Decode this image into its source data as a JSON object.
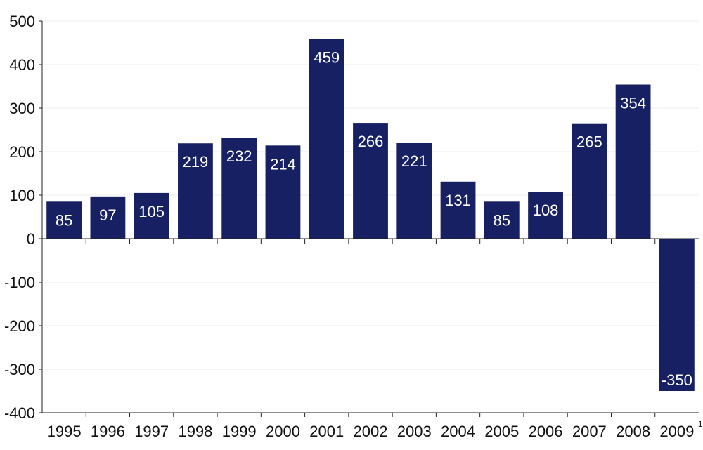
{
  "colors": {
    "bar": "#162063",
    "axis": "#222222",
    "grid": "#eeeeee",
    "label_text": "#ffffff"
  },
  "chart_data": {
    "type": "bar",
    "title": "",
    "xlabel": "",
    "ylabel": "",
    "categories": [
      "1995",
      "1996",
      "1997",
      "1998",
      "1999",
      "2000",
      "2001",
      "2002",
      "2003",
      "2004",
      "2005",
      "2006",
      "2007",
      "2008",
      "2009"
    ],
    "category_footnotes": [
      "",
      "",
      "",
      "",
      "",
      "",
      "",
      "",
      "",
      "",
      "",
      "",
      "",
      "",
      "1"
    ],
    "values": [
      85,
      97,
      105,
      219,
      232,
      214,
      459,
      266,
      221,
      131,
      85,
      108,
      265,
      354,
      -350
    ],
    "data_labels": [
      "85",
      "97",
      "105",
      "219",
      "232",
      "214",
      "459",
      "266",
      "221",
      "131",
      "85",
      "108",
      "265",
      "354",
      "-350"
    ],
    "ylim": [
      -400,
      500
    ],
    "yticks": [
      500,
      400,
      300,
      200,
      100,
      0,
      -100,
      -200,
      -300,
      -400
    ],
    "ytick_labels": [
      "500",
      "400",
      "300",
      "200",
      "100",
      "0",
      "-100",
      "-200",
      "-300",
      "-400"
    ],
    "grid": true,
    "legend": "none"
  }
}
